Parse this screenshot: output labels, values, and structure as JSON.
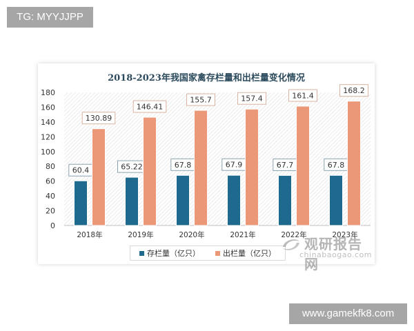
{
  "watermarks": {
    "top_left": "TG: MYYJJPP",
    "bottom_right": "www.gamekfk8.com"
  },
  "logo": {
    "name_cn": "观研报告网",
    "domain": "chinabaogao.com"
  },
  "colors": {
    "stock": "#1e6a8e",
    "output": "#eb9878"
  },
  "legend": {
    "stock": "存栏量（亿只）",
    "output": "出栏量（亿只）"
  },
  "chart_data": {
    "type": "bar",
    "title": "2018-2023年我国家禽存栏量和出栏量变化情况",
    "xlabel": "",
    "ylabel": "",
    "categories": [
      "2018年",
      "2019年",
      "2020年",
      "2021年",
      "2022年",
      "2023年"
    ],
    "series": [
      {
        "name": "存栏量（亿只）",
        "values": [
          60.4,
          65.22,
          67.8,
          67.9,
          67.7,
          67.8
        ],
        "labels": [
          "60.4",
          "65.22",
          "67.8",
          "67.9",
          "67.7",
          "67.8"
        ]
      },
      {
        "name": "出栏量（亿只）",
        "values": [
          130.89,
          146.41,
          155.7,
          157.4,
          161.4,
          168.2
        ],
        "labels": [
          "130.89",
          "146.41",
          "155.7",
          "157.4",
          "161.4",
          "168.2"
        ]
      }
    ],
    "ylim": [
      0,
      180
    ],
    "yticks": [
      "0",
      "20",
      "40",
      "60",
      "80",
      "100",
      "120",
      "140",
      "160",
      "180"
    ],
    "grid": false,
    "legend_position": "bottom"
  }
}
